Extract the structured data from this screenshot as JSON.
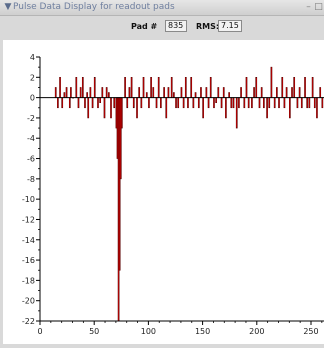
{
  "window": {
    "title": "Pulse Data Display for readout pads",
    "menu_icon": "chevron-down-icon",
    "minimize_glyph": "–",
    "close_glyph": "□"
  },
  "pad": {
    "pad_label": "Pad #",
    "pad_value": "835",
    "rms_label": "RMS:",
    "rms_value": "7.15"
  },
  "colors": {
    "bar_fill": "#ff0000",
    "bar_edge": "#5a0000",
    "axis": "#000000"
  },
  "chart_data": {
    "type": "bar",
    "title": "",
    "xlabel": "",
    "ylabel": "",
    "xlim": [
      0,
      262
    ],
    "ylim": [
      -22,
      4
    ],
    "x_ticks": [
      0,
      50,
      100,
      150,
      200,
      250
    ],
    "y_ticks": [
      4,
      2,
      0,
      -2,
      -4,
      -6,
      -8,
      -10,
      -12,
      -14,
      -16,
      -18,
      -20,
      -22
    ],
    "x_tick_labels": [
      "0",
      "50",
      "100",
      "150",
      "200",
      "250"
    ],
    "y_tick_labels": [
      "4",
      "2",
      "0",
      "-2",
      "-4",
      "-6",
      "-8",
      "-10",
      "-12",
      "-14",
      "-16",
      "-18",
      "-20",
      "-22"
    ],
    "bin_width": 1,
    "series": [
      {
        "x": [
          14,
          16,
          18,
          20,
          22,
          24,
          27,
          28,
          30,
          33,
          35,
          37,
          39,
          41,
          43,
          44,
          46,
          48,
          50,
          53,
          55,
          57,
          59,
          61,
          63,
          65,
          68,
          70,
          71,
          72,
          73,
          74,
          75,
          78,
          80,
          82,
          84,
          86,
          89,
          91,
          93,
          95,
          98,
          100,
          102,
          104,
          107,
          109,
          111,
          114,
          116,
          118,
          121,
          123,
          125,
          127,
          130,
          132,
          134,
          136,
          139,
          141,
          143,
          146,
          148,
          150,
          153,
          155,
          157,
          160,
          162,
          164,
          167,
          169,
          171,
          174,
          176,
          178,
          181,
          183,
          185,
          188,
          190,
          192,
          195,
          197,
          199,
          202,
          204,
          206,
          209,
          211,
          213,
          216,
          218,
          220,
          223,
          225,
          227,
          230,
          232,
          234,
          237,
          239,
          241,
          244,
          246,
          248,
          251,
          253,
          255,
          258,
          260
        ],
        "y": [
          1,
          -1,
          2,
          -1,
          0.5,
          1,
          -1,
          1,
          0,
          2,
          -1,
          1,
          2,
          -1,
          0.5,
          -2,
          1,
          -1,
          2,
          -1,
          -0.5,
          1,
          -2,
          1,
          0.5,
          -2,
          -1,
          -3,
          -6,
          -22,
          -17,
          -8,
          -3,
          2,
          -1,
          1,
          2,
          -1,
          -2,
          1,
          -1,
          2,
          0.5,
          -1,
          2,
          1,
          -1,
          2,
          -1,
          1,
          -2,
          1,
          2,
          0.5,
          -1,
          -1,
          1,
          -1,
          2,
          -1,
          2,
          -1,
          0.5,
          -1,
          1,
          -2,
          1,
          -1,
          2,
          -1,
          -0.5,
          1,
          -1,
          1,
          -2,
          0.5,
          -1,
          -1,
          -3,
          -1,
          1,
          -1,
          2,
          -1,
          -1,
          1,
          2,
          -1,
          1,
          -1,
          -2,
          -1,
          3,
          -1,
          1,
          -1,
          2,
          -1,
          1,
          -2,
          1,
          2,
          -1,
          1,
          -1,
          2,
          -1,
          -1,
          2,
          -1,
          -2,
          1,
          -1
        ]
      }
    ]
  }
}
